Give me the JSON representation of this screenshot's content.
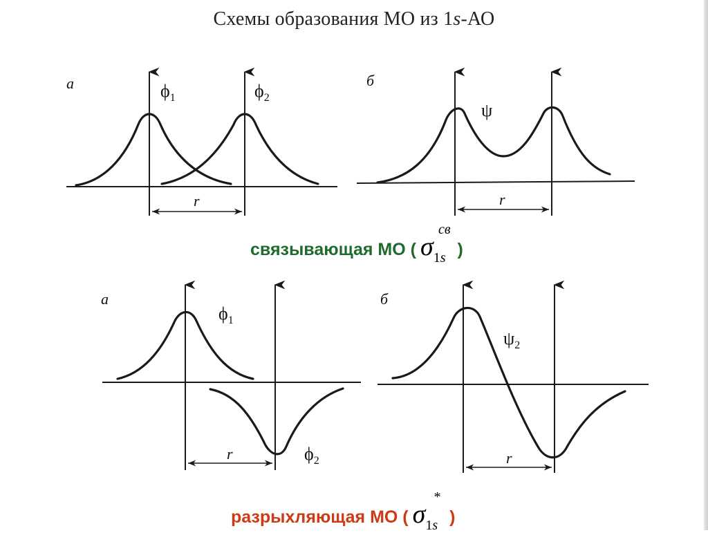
{
  "title": {
    "prefix": "Схемы образования МО из 1",
    "italic": "s",
    "suffix": "-АО"
  },
  "panels": {
    "top_left": {
      "letter": "а",
      "label_1": "ϕ",
      "label_1_sub": "1",
      "label_2": "ϕ",
      "label_2_sub": "2",
      "distance": "r"
    },
    "top_right": {
      "letter": "б",
      "label": "ψ",
      "distance": "r"
    },
    "bottom_left": {
      "letter": "а",
      "label_1": "ϕ",
      "label_1_sub": "1",
      "label_2": "ϕ",
      "label_2_sub": "2",
      "distance": "r"
    },
    "bottom_right": {
      "letter": "б",
      "label": "ψ",
      "label_sub": "2",
      "distance": "r"
    }
  },
  "bonding": {
    "text": "связывающая МО (",
    "sigma": "σ",
    "subscript_num": "1",
    "subscript_s": "s",
    "superscript": "св",
    "close": ")",
    "color": "#1f6b2e"
  },
  "antibonding": {
    "text": "разрыхляющая МО (",
    "sigma": "σ",
    "subscript_num": "1",
    "subscript_s": "s",
    "superscript": "*",
    "close": ")",
    "color": "#cc3b14"
  }
}
